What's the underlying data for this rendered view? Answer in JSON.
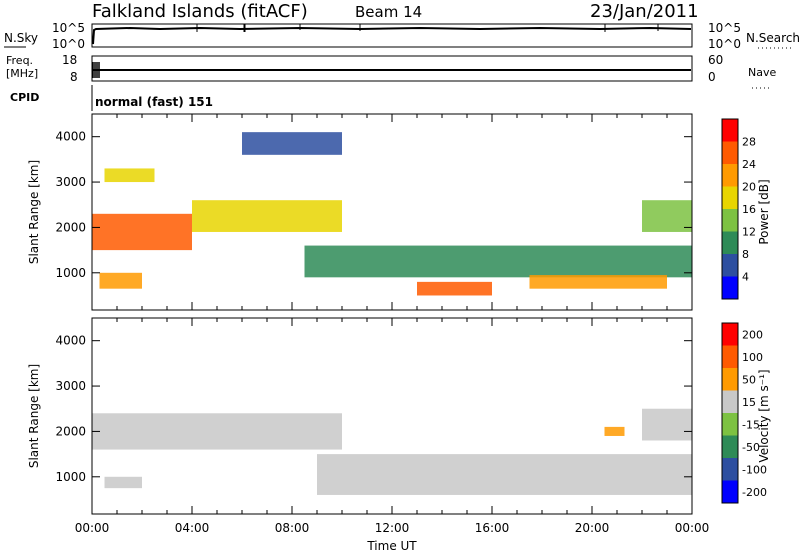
{
  "header": {
    "station": "Falkland Islands (fitACF)",
    "beam": "Beam 14",
    "date": "23/Jan/2011"
  },
  "status_panels": {
    "nsky_label": "N.Sky",
    "nsearch_label": "N.Search",
    "noise_ticks": [
      "10^5",
      "10^0"
    ],
    "freq_label_1": "Freq.",
    "freq_label_2": "[MHz]",
    "freq_ticks": [
      "18",
      "8"
    ],
    "nave_label": "Nave",
    "nave_ticks": [
      "60",
      "0"
    ],
    "cpid_label": "CPID",
    "cpid_value": "normal (fast) 151"
  },
  "chart_data": [
    {
      "type": "heatmap",
      "panel": "power",
      "ylabel": "Slant Range [km]",
      "y_ticks": [
        "1000",
        "2000",
        "3000",
        "4000"
      ],
      "ylim": [
        180,
        4500
      ],
      "xlim": [
        0,
        24
      ],
      "colorbar_label": "Power [dB]",
      "colorbar_ticks": [
        "4",
        "8",
        "12",
        "16",
        "20",
        "24",
        "28"
      ],
      "colorbar_colors": [
        "#0000ff",
        "#2d4fa0",
        "#2e8b57",
        "#7dc242",
        "#e8d500",
        "#ff9a00",
        "#ff5a00",
        "#ff0000"
      ],
      "regions": [
        {
          "t0": 0.0,
          "t1": 4.0,
          "r0": 1500,
          "r1": 2300,
          "level": 6
        },
        {
          "t0": 0.3,
          "t1": 2.0,
          "r0": 650,
          "r1": 1000,
          "level": 5
        },
        {
          "t0": 0.5,
          "t1": 2.5,
          "r0": 3000,
          "r1": 3300,
          "level": 4
        },
        {
          "t0": 4.0,
          "t1": 10.0,
          "r0": 1900,
          "r1": 2600,
          "level": 4
        },
        {
          "t0": 6.0,
          "t1": 10.0,
          "r0": 3600,
          "r1": 4100,
          "level": 1
        },
        {
          "t0": 8.5,
          "t1": 24.0,
          "r0": 900,
          "r1": 1600,
          "level": 2
        },
        {
          "t0": 13.0,
          "t1": 16.0,
          "r0": 500,
          "r1": 800,
          "level": 6
        },
        {
          "t0": 17.5,
          "t1": 23.0,
          "r0": 650,
          "r1": 950,
          "level": 5
        },
        {
          "t0": 22.0,
          "t1": 24.0,
          "r0": 1900,
          "r1": 2600,
          "level": 3
        }
      ]
    },
    {
      "type": "heatmap",
      "panel": "velocity",
      "ylabel": "Slant Range [km]",
      "y_ticks": [
        "1000",
        "2000",
        "3000",
        "4000"
      ],
      "ylim": [
        180,
        4500
      ],
      "xlim": [
        0,
        24
      ],
      "xlabel": "Time UT",
      "x_ticks": [
        "00:00",
        "04:00",
        "08:00",
        "12:00",
        "16:00",
        "20:00",
        "00:00"
      ],
      "colorbar_label": "Velocity [m s⁻¹]",
      "colorbar_ticks": [
        "200",
        "100",
        "50",
        "15",
        "-15",
        "-50",
        "-100",
        "-200"
      ],
      "colorbar_colors": [
        "#0000ff",
        "#2d4fa0",
        "#2e8b57",
        "#7dc242",
        "#c8c8c8",
        "#ff9a00",
        "#ff5a00",
        "#ff0000"
      ],
      "regions": [
        {
          "t0": 0.0,
          "t1": 10.0,
          "r0": 1600,
          "r1": 2400,
          "level": 4
        },
        {
          "t0": 0.5,
          "t1": 2.0,
          "r0": 750,
          "r1": 1000,
          "level": 4
        },
        {
          "t0": 9.0,
          "t1": 24.0,
          "r0": 600,
          "r1": 1500,
          "level": 4
        },
        {
          "t0": 20.5,
          "t1": 21.3,
          "r0": 1900,
          "r1": 2100,
          "level": 5
        },
        {
          "t0": 22.0,
          "t1": 24.0,
          "r0": 1800,
          "r1": 2500,
          "level": 4
        }
      ]
    }
  ]
}
